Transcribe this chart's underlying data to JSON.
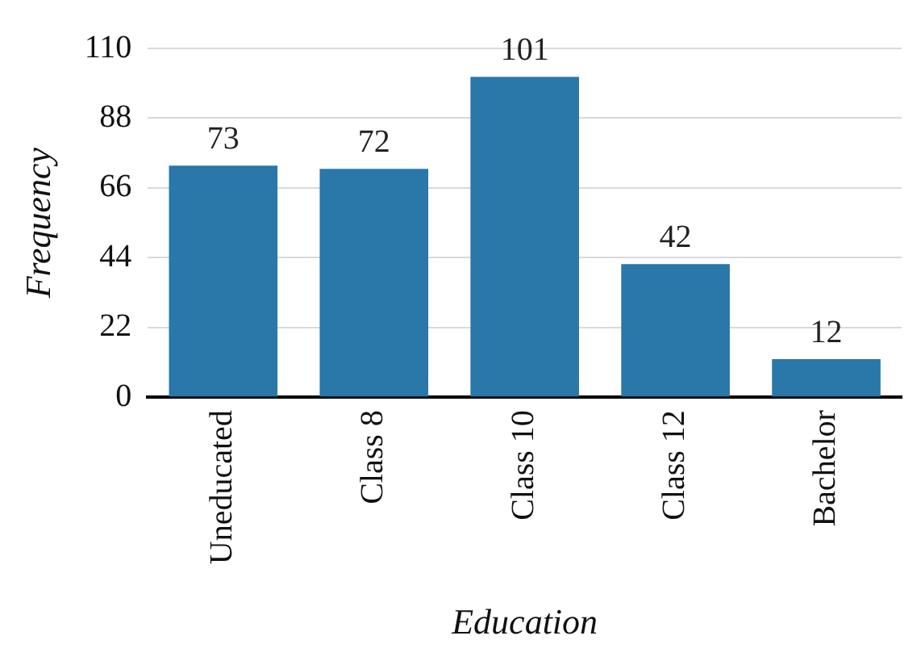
{
  "chart_data": {
    "type": "bar",
    "xlabel": "Education",
    "ylabel": "Frequency",
    "categories": [
      "Uneducated",
      "Class 8",
      "Class 10",
      "Class 12",
      "Bachelor"
    ],
    "values": [
      73,
      72,
      101,
      42,
      12
    ],
    "color": "#2a77a9",
    "ylim": [
      0,
      110
    ],
    "yticks": [
      0,
      22,
      44,
      66,
      88,
      110
    ],
    "grid": "y",
    "data_labels": true
  }
}
